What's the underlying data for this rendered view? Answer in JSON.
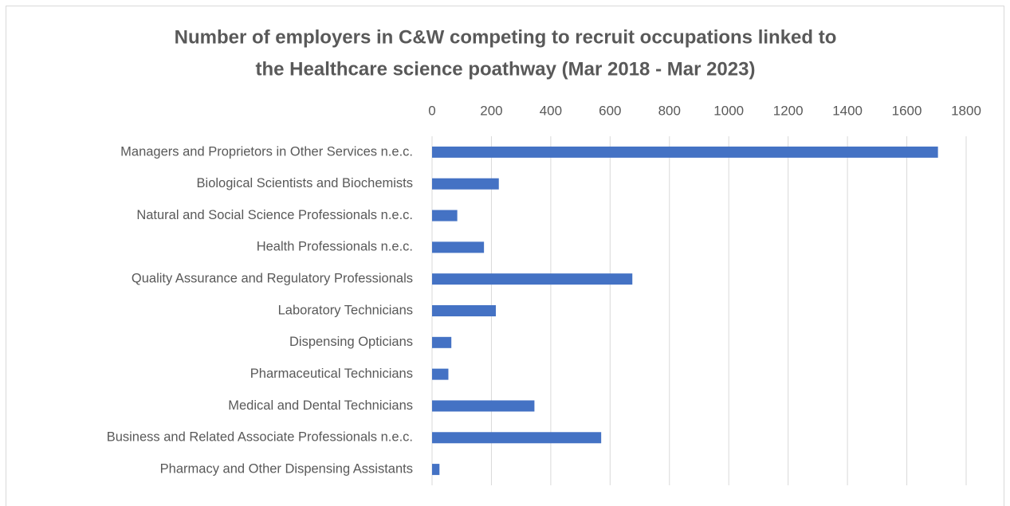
{
  "chart_data": {
    "type": "hbar",
    "title": [
      "Number of employers in C&W competing to recruit occupations linked to",
      "the Healthcare science poathway (Mar 2018 - Mar 2023)"
    ],
    "categories": [
      "Managers and Proprietors in Other Services n.e.c.",
      "Biological Scientists and Biochemists",
      "Natural and Social Science Professionals n.e.c.",
      "Health Professionals n.e.c.",
      "Quality Assurance and Regulatory Professionals",
      "Laboratory Technicians",
      "Dispensing Opticians",
      "Pharmaceutical Technicians",
      "Medical and Dental Technicians",
      "Business and Related Associate Professionals n.e.c.",
      "Pharmacy and Other Dispensing Assistants"
    ],
    "values": [
      1705,
      225,
      85,
      175,
      675,
      215,
      65,
      55,
      345,
      570,
      25
    ],
    "color": "#4472c4",
    "xlim": [
      0,
      1800
    ],
    "xticks": [
      0,
      200,
      400,
      600,
      800,
      1000,
      1200,
      1400,
      1600,
      1800
    ],
    "grid": true
  }
}
